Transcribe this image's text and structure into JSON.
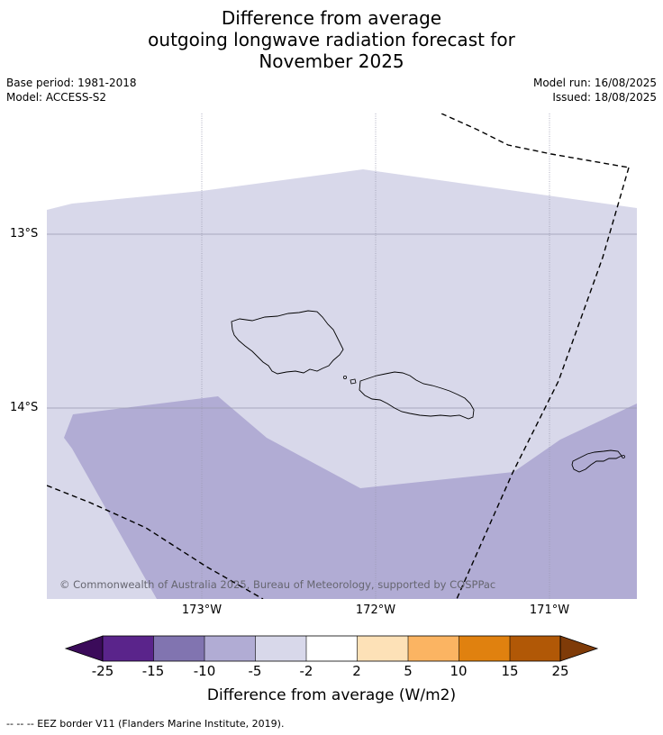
{
  "title": {
    "line1": "Difference from average",
    "line2": "outgoing longwave radiation forecast for",
    "line3": "November 2025"
  },
  "meta": {
    "base_period": "Base period: 1981-2018",
    "model": "Model: ACCESS-S2",
    "model_run": "Model run: 16/08/2025",
    "issued": "Issued: 18/08/2025"
  },
  "map": {
    "lat_labels": [
      "13°S",
      "14°S"
    ],
    "lon_labels": [
      "173°W",
      "172°W",
      "171°W"
    ],
    "copyright": "© Commonwealth of Australia 2025, Bureau of Meteorology, supported by COSPPac",
    "regions": [
      {
        "category": "-5 to -2",
        "color": "#d8d8ea"
      },
      {
        "category": "-10 to -5",
        "color": "#b1acd4"
      }
    ],
    "land": "Samoa (Savai'i, Upolu) and American Samoa (Tutuila)"
  },
  "colorbar": {
    "title": "Difference from average (W/m2)",
    "ticks": [
      "-25",
      "-15",
      "-10",
      "-5",
      "-2",
      "2",
      "5",
      "10",
      "15",
      "25"
    ],
    "colors": [
      "#3b0b5a",
      "#5a248b",
      "#8174b0",
      "#b1acd4",
      "#d8d8ea",
      "#ffffff",
      "#fde1b7",
      "#fbb462",
      "#e0810f",
      "#b15806",
      "#7f3b08"
    ]
  },
  "legend": {
    "eez": "--  --  -- EEZ border V11 (Flanders Marine Institute, 2019)."
  }
}
